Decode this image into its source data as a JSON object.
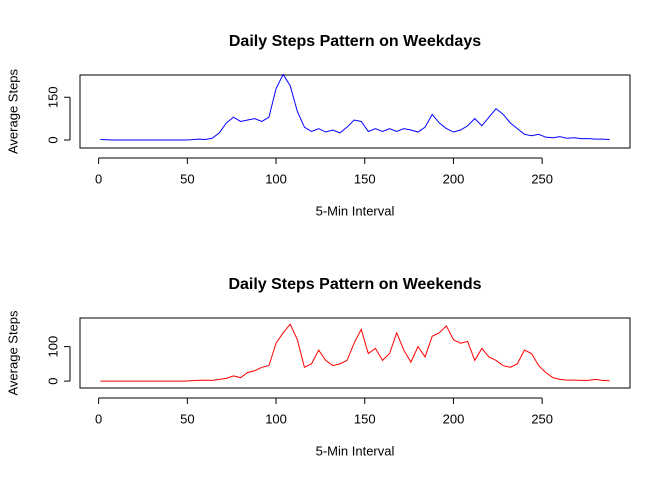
{
  "chart_data": [
    {
      "type": "line",
      "title": "Daily Steps Pattern on Weekdays",
      "xlabel": "5-Min Interval",
      "ylabel": "Average Steps",
      "x": [
        1,
        4,
        8,
        12,
        16,
        20,
        24,
        28,
        32,
        36,
        40,
        44,
        48,
        52,
        56,
        60,
        64,
        68,
        72,
        76,
        80,
        84,
        88,
        92,
        96,
        100,
        104,
        108,
        112,
        116,
        120,
        124,
        128,
        132,
        136,
        140,
        144,
        148,
        152,
        156,
        160,
        164,
        168,
        172,
        176,
        180,
        184,
        188,
        192,
        196,
        200,
        204,
        208,
        212,
        216,
        220,
        224,
        228,
        232,
        236,
        240,
        244,
        248,
        252,
        256,
        260,
        264,
        268,
        272,
        276,
        280,
        284,
        288
      ],
      "series": [
        {
          "name": "Weekdays",
          "color": "#0000ff",
          "values": [
            2,
            1,
            0,
            0,
            0,
            0,
            0,
            0,
            0,
            0,
            0,
            0,
            0,
            1,
            3,
            2,
            6,
            25,
            60,
            80,
            65,
            70,
            75,
            65,
            80,
            180,
            230,
            190,
            100,
            45,
            30,
            40,
            28,
            35,
            25,
            45,
            70,
            65,
            30,
            40,
            30,
            40,
            30,
            40,
            35,
            28,
            45,
            90,
            60,
            40,
            28,
            35,
            50,
            75,
            50,
            80,
            110,
            90,
            60,
            40,
            20,
            15,
            20,
            10,
            8,
            12,
            6,
            8,
            5,
            5,
            3,
            3,
            2
          ]
        }
      ],
      "xlim": [
        -10.5,
        299.5
      ],
      "xticks": [
        0,
        50,
        100,
        150,
        200,
        250
      ],
      "ylim": [
        -28,
        228
      ],
      "yticks": [
        0,
        150
      ]
    },
    {
      "type": "line",
      "title": "Daily Steps Pattern on Weekends",
      "xlabel": "5-Min Interval",
      "ylabel": "Average Steps",
      "x": [
        1,
        4,
        8,
        12,
        16,
        20,
        24,
        28,
        32,
        36,
        40,
        44,
        48,
        52,
        56,
        60,
        64,
        68,
        72,
        76,
        80,
        84,
        88,
        92,
        96,
        100,
        104,
        108,
        112,
        116,
        120,
        124,
        128,
        132,
        136,
        140,
        144,
        148,
        152,
        156,
        160,
        164,
        168,
        172,
        176,
        180,
        184,
        188,
        192,
        196,
        200,
        204,
        208,
        212,
        216,
        220,
        224,
        228,
        232,
        236,
        240,
        244,
        248,
        252,
        256,
        260,
        264,
        268,
        272,
        276,
        280,
        284,
        288
      ],
      "series": [
        {
          "name": "Weekends",
          "color": "#ff0000",
          "values": [
            0,
            0,
            0,
            0,
            0,
            0,
            0,
            0,
            0,
            0,
            0,
            0,
            0,
            1,
            2,
            3,
            2,
            5,
            8,
            15,
            10,
            25,
            30,
            40,
            45,
            110,
            140,
            165,
            120,
            40,
            50,
            90,
            60,
            45,
            50,
            60,
            110,
            150,
            80,
            95,
            60,
            80,
            140,
            90,
            55,
            100,
            70,
            130,
            140,
            160,
            120,
            110,
            115,
            60,
            95,
            70,
            60,
            45,
            40,
            50,
            90,
            80,
            45,
            25,
            10,
            5,
            3,
            3,
            2,
            2,
            5,
            2,
            1
          ]
        }
      ],
      "xlim": [
        -10.5,
        299.5
      ],
      "xticks": [
        0,
        50,
        100,
        150,
        200,
        250
      ],
      "ylim": [
        -20,
        183
      ],
      "yticks": [
        0,
        100
      ]
    }
  ]
}
